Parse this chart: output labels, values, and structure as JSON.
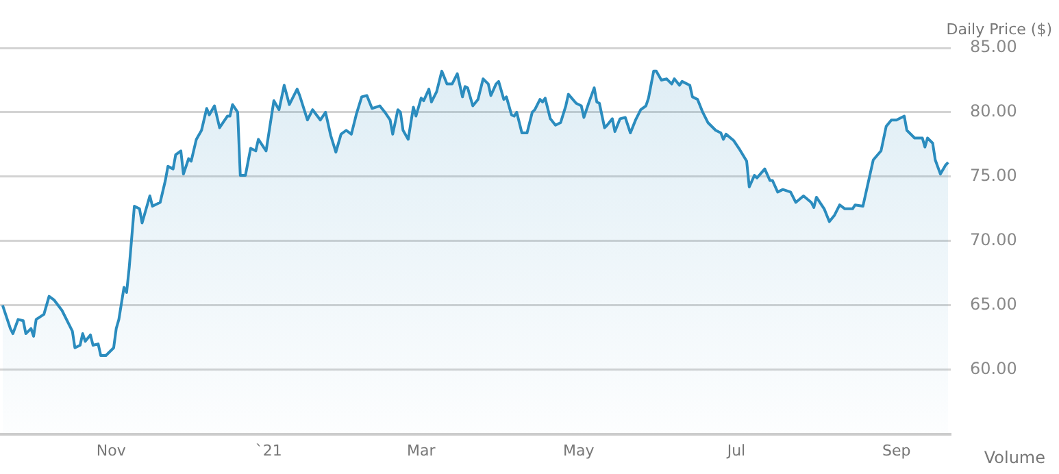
{
  "chart_data": {
    "type": "area",
    "ylabel": "Daily Price ($)",
    "annotations": [
      "Volume"
    ],
    "xlim": [
      "2020-09-19",
      "2021-09-22"
    ],
    "xticks": [
      {
        "value": "2020-11-01",
        "label": "Nov"
      },
      {
        "value": "2021-01-01",
        "label": "`21"
      },
      {
        "value": "2021-03-01",
        "label": "Mar"
      },
      {
        "value": "2021-05-01",
        "label": "May"
      },
      {
        "value": "2021-07-01",
        "label": "Jul"
      },
      {
        "value": "2021-09-01",
        "label": "Sep"
      }
    ],
    "ylim": [
      55,
      85
    ],
    "yticks": [
      {
        "value": 60,
        "label": "60.00"
      },
      {
        "value": 65,
        "label": "65.00"
      },
      {
        "value": 70,
        "label": "70.00"
      },
      {
        "value": 75,
        "label": "75.00"
      },
      {
        "value": 80,
        "label": "80.00"
      },
      {
        "value": 85,
        "label": "85.00"
      }
    ],
    "grid": "y",
    "legend": false,
    "marker": "none",
    "line_style": "solid",
    "series": [
      {
        "color": "#2b8cbe",
        "x": [
          "2020-09-20",
          "2020-09-23",
          "2020-09-24",
          "2020-09-26",
          "2020-09-28",
          "2020-09-29",
          "2020-10-01",
          "2020-10-02",
          "2020-10-03",
          "2020-10-06",
          "2020-10-08",
          "2020-10-10",
          "2020-10-13",
          "2020-10-17",
          "2020-10-18",
          "2020-10-20",
          "2020-10-21",
          "2020-10-22",
          "2020-10-24",
          "2020-10-25",
          "2020-10-27",
          "2020-10-28",
          "2020-10-30",
          "2020-11-02",
          "2020-11-03",
          "2020-11-04",
          "2020-11-06",
          "2020-11-07",
          "2020-11-08",
          "2020-11-10",
          "2020-11-12",
          "2020-11-13",
          "2020-11-16",
          "2020-11-17",
          "2020-11-20",
          "2020-11-22",
          "2020-11-23",
          "2020-11-25",
          "2020-11-26",
          "2020-11-28",
          "2020-11-29",
          "2020-12-01",
          "2020-12-02",
          "2020-12-04",
          "2020-12-06",
          "2020-12-08",
          "2020-12-09",
          "2020-12-11",
          "2020-12-13",
          "2020-12-16",
          "2020-12-17",
          "2020-12-18",
          "2020-12-20",
          "2020-12-21",
          "2020-12-23",
          "2020-12-25",
          "2020-12-27",
          "2020-12-28",
          "2020-12-31",
          "2021-01-01",
          "2021-01-03",
          "2021-01-05",
          "2021-01-07",
          "2021-01-09",
          "2021-01-12",
          "2021-01-13",
          "2021-01-16",
          "2021-01-18",
          "2021-01-21",
          "2021-01-23",
          "2021-01-25",
          "2021-01-27",
          "2021-01-29",
          "2021-01-31",
          "2021-02-02",
          "2021-02-04",
          "2021-02-06",
          "2021-02-08",
          "2021-02-10",
          "2021-02-13",
          "2021-02-15",
          "2021-02-17",
          "2021-02-18",
          "2021-02-20",
          "2021-02-21",
          "2021-02-22",
          "2021-02-24",
          "2021-02-26",
          "2021-02-27",
          "2021-03-01",
          "2021-03-02",
          "2021-03-04",
          "2021-03-05",
          "2021-03-07",
          "2021-03-09",
          "2021-03-11",
          "2021-03-13",
          "2021-03-15",
          "2021-03-17",
          "2021-03-18",
          "2021-03-19",
          "2021-03-21",
          "2021-03-23",
          "2021-03-25",
          "2021-03-27",
          "2021-03-28",
          "2021-03-30",
          "2021-03-31",
          "2021-04-02",
          "2021-04-03",
          "2021-04-05",
          "2021-04-06",
          "2021-04-07",
          "2021-04-09",
          "2021-04-11",
          "2021-04-13",
          "2021-04-14",
          "2021-04-16",
          "2021-04-17",
          "2021-04-18",
          "2021-04-20",
          "2021-04-22",
          "2021-04-24",
          "2021-04-26",
          "2021-04-27",
          "2021-04-30",
          "2021-05-02",
          "2021-05-03",
          "2021-05-05",
          "2021-05-07",
          "2021-05-08",
          "2021-05-09",
          "2021-05-11",
          "2021-05-12",
          "2021-05-14",
          "2021-05-15",
          "2021-05-17",
          "2021-05-19",
          "2021-05-21",
          "2021-05-23",
          "2021-05-25",
          "2021-05-27",
          "2021-05-28",
          "2021-05-30",
          "2021-05-31",
          "2021-06-02",
          "2021-06-04",
          "2021-06-06",
          "2021-06-07",
          "2021-06-09",
          "2021-06-10",
          "2021-06-13",
          "2021-06-14",
          "2021-06-16",
          "2021-06-18",
          "2021-06-20",
          "2021-06-23",
          "2021-06-25",
          "2021-06-26",
          "2021-06-27",
          "2021-06-30",
          "2021-07-02",
          "2021-07-05",
          "2021-07-06",
          "2021-07-08",
          "2021-07-09",
          "2021-07-12",
          "2021-07-14",
          "2021-07-15",
          "2021-07-17",
          "2021-07-19",
          "2021-07-22",
          "2021-07-24",
          "2021-07-27",
          "2021-07-30",
          "2021-07-31",
          "2021-08-01",
          "2021-08-04",
          "2021-08-06",
          "2021-08-08",
          "2021-08-10",
          "2021-08-12",
          "2021-08-15",
          "2021-08-16",
          "2021-08-19",
          "2021-08-20",
          "2021-08-22",
          "2021-08-23",
          "2021-08-26",
          "2021-08-28",
          "2021-08-30",
          "2021-09-01",
          "2021-09-02",
          "2021-09-04",
          "2021-09-05",
          "2021-09-08",
          "2021-09-11",
          "2021-09-12",
          "2021-09-13",
          "2021-09-15",
          "2021-09-16",
          "2021-09-18",
          "2021-09-20",
          "2021-09-21"
        ],
        "values": [
          65.0,
          63.2,
          62.8,
          63.9,
          63.8,
          62.8,
          63.2,
          62.6,
          63.9,
          64.3,
          65.7,
          65.4,
          64.6,
          63.0,
          61.7,
          61.9,
          62.8,
          62.2,
          62.7,
          61.9,
          62.0,
          61.1,
          61.1,
          61.7,
          63.2,
          63.9,
          66.4,
          66.0,
          67.9,
          72.7,
          72.5,
          71.4,
          73.5,
          72.7,
          73.0,
          74.7,
          75.8,
          75.6,
          76.7,
          77.0,
          75.2,
          76.4,
          76.2,
          77.9,
          78.6,
          80.3,
          79.8,
          80.5,
          78.8,
          79.7,
          79.7,
          80.6,
          80.0,
          75.1,
          75.1,
          77.2,
          77.0,
          77.9,
          77.0,
          78.3,
          80.9,
          80.2,
          82.1,
          80.6,
          81.8,
          81.3,
          79.4,
          80.2,
          79.4,
          80.0,
          78.2,
          76.9,
          78.3,
          78.6,
          78.3,
          79.9,
          81.2,
          81.3,
          80.3,
          80.5,
          80.0,
          79.4,
          78.3,
          80.2,
          80.0,
          78.6,
          77.9,
          80.4,
          79.7,
          81.1,
          80.9,
          81.8,
          80.8,
          81.6,
          83.2,
          82.2,
          82.2,
          83.0,
          81.2,
          82.0,
          81.9,
          80.5,
          81.0,
          82.6,
          82.2,
          81.3,
          82.2,
          82.4,
          81.0,
          81.2,
          79.8,
          79.7,
          80.0,
          78.4,
          78.4,
          80.0,
          80.2,
          81.0,
          80.8,
          81.1,
          79.5,
          79.0,
          79.2,
          80.5,
          81.4,
          80.7,
          80.5,
          79.6,
          80.8,
          81.9,
          80.8,
          80.7,
          78.8,
          79.0,
          79.5,
          78.5,
          79.5,
          79.6,
          78.4,
          79.4,
          80.2,
          80.5,
          81.1,
          83.2,
          83.2,
          82.5,
          82.6,
          82.2,
          82.6,
          82.1,
          82.4,
          82.1,
          81.2,
          81.0,
          80.0,
          79.2,
          78.6,
          78.4,
          77.9,
          78.3,
          77.8,
          77.2,
          76.2,
          74.2,
          75.1,
          74.9,
          75.6,
          74.7,
          74.7,
          73.8,
          74.0,
          73.8,
          73.0,
          73.5,
          73.0,
          72.6,
          73.4,
          72.5,
          71.5,
          72.0,
          72.8,
          72.5,
          72.5,
          72.8,
          72.7,
          73.6,
          75.4,
          76.3,
          77.0,
          78.9,
          79.4,
          79.4,
          79.5,
          79.7,
          78.6,
          78.0,
          78.0,
          77.3,
          78.0,
          77.6,
          76.3,
          75.2,
          75.9,
          76.1
        ]
      }
    ]
  }
}
